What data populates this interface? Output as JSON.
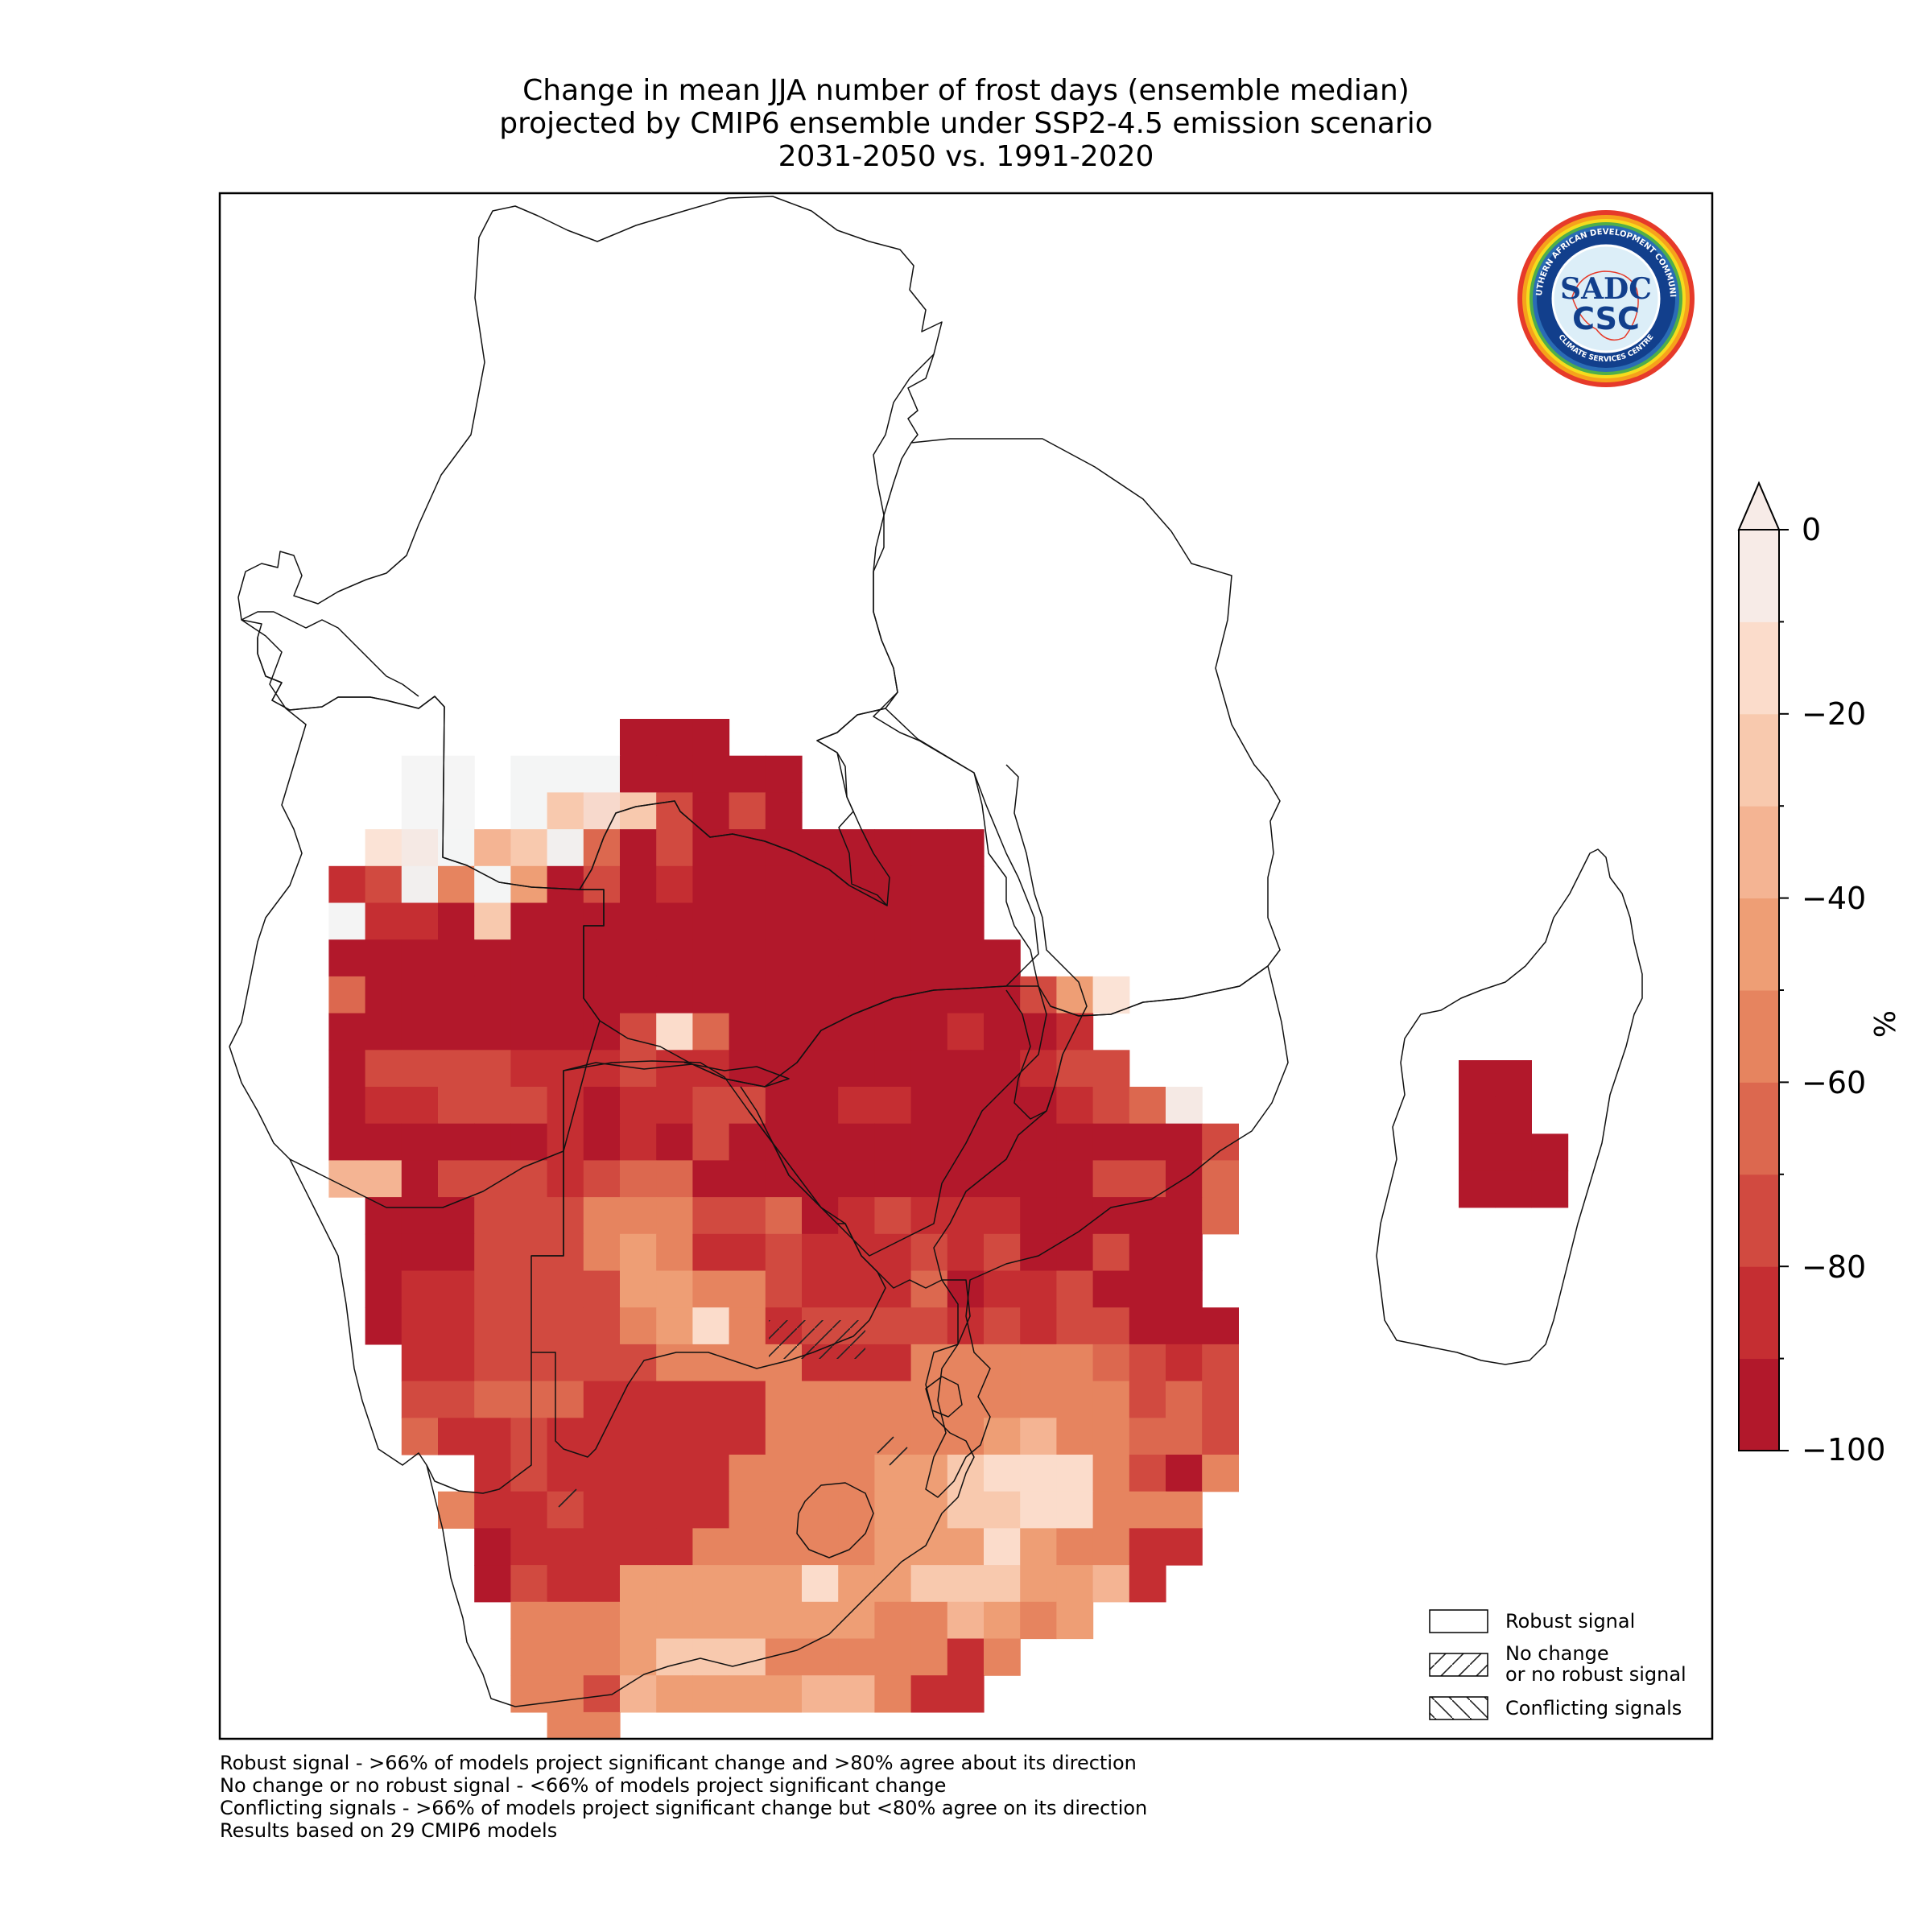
{
  "title": {
    "line1": "Change in mean JJA number of frost days (ensemble median)",
    "line2": "projected by CMIP6 ensemble under SSP2-4.5 emission scenario",
    "line3": "2031-2050 vs. 1991-2020"
  },
  "colorbar": {
    "unit": "%",
    "tick_labels": [
      "0",
      "−20",
      "−40",
      "−60",
      "−80",
      "−100"
    ],
    "range": [
      -100,
      0
    ],
    "extend": "max",
    "colors": [
      "#b2182b",
      "#c52e32",
      "#d14a40",
      "#dc684f",
      "#e6845f",
      "#ee9e75",
      "#f4b493",
      "#f8c9ae",
      "#fbdccb",
      "#f7ebe7"
    ]
  },
  "legend": {
    "robust": "Robust signal",
    "no_change_1": "No change",
    "no_change_2": "or no robust signal",
    "conflicting": "Conflicting signals"
  },
  "footnotes": {
    "line1": "Robust signal - >66% of models project significant change and >80% agree about its direction",
    "line2": "No change or no robust signal - <66% of models project significant change",
    "line3": "Conflicting signals - >66% of models project significant change but <80% agree on its direction",
    "line4": "Results based on 29 CMIP6 models"
  },
  "logo": {
    "top_text": "SOUTHERN AFRICAN DEVELOPMENT COMMUNITY",
    "bottom_text": "CLIMATE SERVICES CENTRE",
    "mark_1": "SADC",
    "mark_2": "CSC"
  },
  "grid": {
    "rows": [
      "..........KKK..............",
      "....00.WWWKKKKK............",
      "....00.WGUGMKMK............",
      "...QSWIGPNKMKKKKKKKK.......",
      "..LMPJWHKMKLKKKKKKKK.......",
      ".TDLLKGKKKKKKKKKKKKK.......",
      "..KKKKKKKKKKKKKKKKKKK......",
      "..NKKKKKKKKKKKKKKKKKKMHQ...",
      "..KKKKKKKKMFNKKKKKKLKKL....",
      "..KMMMMLLLMLLKKKKKKKKLMM...",
      "..KLLMMMLKLLMMKKLLKKKKLMNS.",
      "..KKKKKKLKLKMKKKKKKKKKKKKKM",
      "..IIKMMMLMNNKKKKKKKKKKKMMKN",
      "...KKKMMMJJJMMNKLMLLLKKKKKN",
      "...KKKMMMJHJLLMLLLMLMKKMKK.",
      "...KLLMMMMHHJJMLLLNKLLMKKK.",
      "...KLLMMMMJHFJLMMMMLMLMMKKK",
      "....LLMMMMMJJJJLLLJJJJJNMLM",
      "....MMNNNLLLLLJJJJJJJJJJMNM",
      "....NLLMLLLLLLJJJJJJHIJJNNM",
      "......LMLLLLLJJJJHHGFFFJMKJ",
      ".....JLLMLLLLJJJJHHGGFFJJJ.",
      "......KLLLLLJJJJJHHHFHJJLL.",
      "......KMLLHHHHHFHHGGGHHIL..",
      ".......JJJHHHHHHHJJIHJH....",
      ".......JJJHGGGJJJJJLJ......",
      ".......JJMIHHHHIIJLL.......",
      "........JJ................"
    ],
    "madagascar": [
      "KK.",
      "KK.",
      "KKK",
      "KKK"
    ]
  }
}
